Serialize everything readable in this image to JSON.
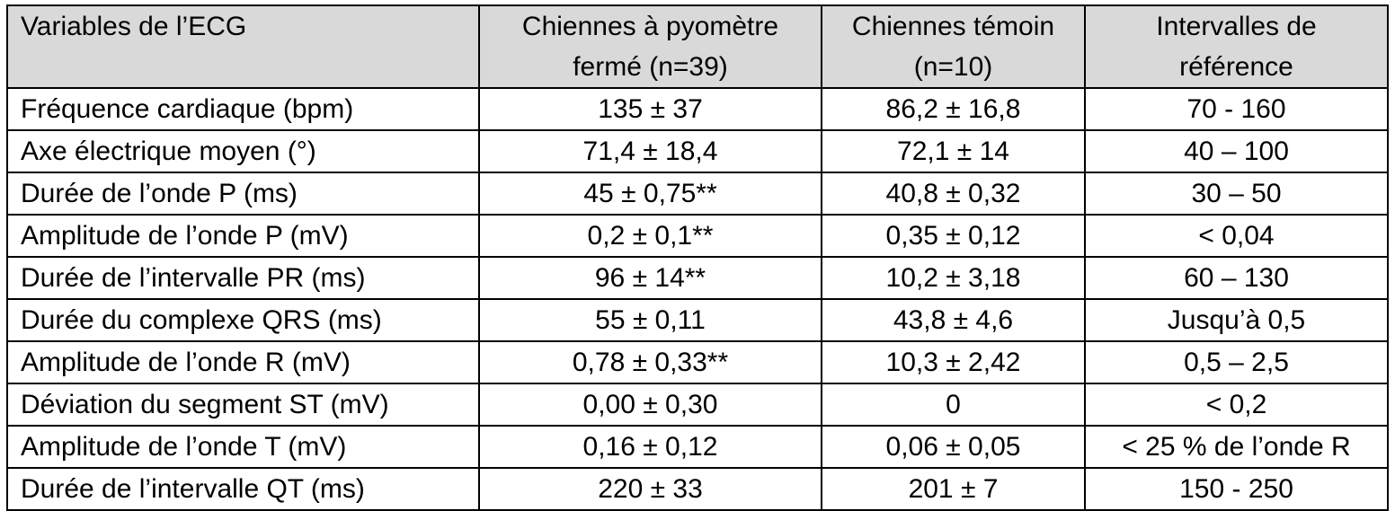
{
  "table": {
    "headers": [
      [
        "Variables de l’ECG"
      ],
      [
        "Chiennes à pyomètre",
        "fermé (n=39)"
      ],
      [
        "Chiennes témoin",
        "(n=10)"
      ],
      [
        "Intervalles de",
        "référence"
      ]
    ],
    "rows": [
      [
        "Fréquence cardiaque (bpm)",
        "135 ± 37",
        "86,2 ± 16,8",
        "70 - 160"
      ],
      [
        "Axe électrique moyen (°)",
        "71,4 ± 18,4",
        "72,1 ± 14",
        "40 – 100"
      ],
      [
        "Durée de l’onde P (ms)",
        "45 ± 0,75**",
        "40,8 ± 0,32",
        "30 – 50"
      ],
      [
        "Amplitude de l’onde P (mV)",
        "0,2 ± 0,1**",
        "0,35 ± 0,12",
        "< 0,04"
      ],
      [
        "Durée de l’intervalle PR (ms)",
        "96 ± 14**",
        "10,2 ± 3,18",
        "60 – 130"
      ],
      [
        "Durée du complexe QRS (ms)",
        "55 ± 0,11",
        "43,8 ± 4,6",
        "Jusqu’à 0,5"
      ],
      [
        "Amplitude de l’onde R (mV)",
        "0,78 ± 0,33**",
        "10,3 ± 2,42",
        "0,5 – 2,5"
      ],
      [
        "Déviation du segment ST (mV)",
        "0,00 ± 0,30",
        "0",
        "< 0,2"
      ],
      [
        "Amplitude de l’onde T (mV)",
        "0,16 ± 0,12",
        "0,06 ± 0,05",
        "< 25 % de l’onde R"
      ],
      [
        "Durée de l’intervalle QT (ms)",
        "220 ± 33",
        "201 ± 7",
        "150 - 250"
      ]
    ]
  },
  "colors": {
    "header_background": "#d9d9d9",
    "border": "#000000",
    "text": "#000000"
  }
}
